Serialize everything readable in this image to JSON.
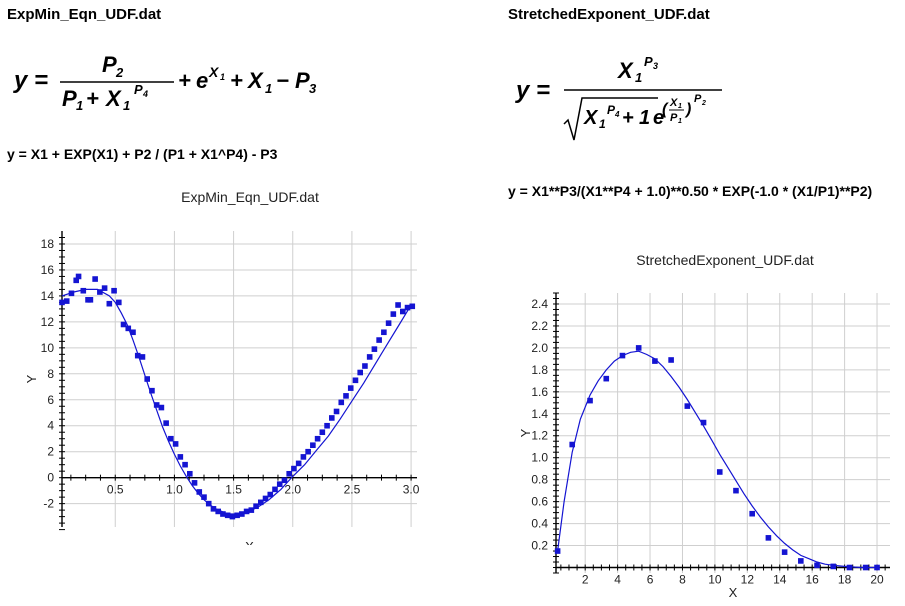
{
  "left": {
    "file_title": "ExpMin_Eqn_UDF.dat",
    "equation_text": "y = X1 + EXP(X1) + P2 / (P1 + X1^P4) - P3"
  },
  "right": {
    "file_title": "StretchedExponent_UDF.dat",
    "equation_text": "y = X1**P3/(X1**P4 + 1.0)**0.50 * EXP(-1.0 * (X1/P1)**P2)"
  },
  "colors": {
    "series": "#1414d2",
    "grid": "#cfcfcf",
    "axis": "#000000"
  },
  "chart_data": [
    {
      "type": "scatter",
      "title": "ExpMin_Eqn_UDF.dat",
      "xlabel": "X",
      "ylabel": "Y",
      "xlim": [
        0.05,
        3.05
      ],
      "ylim": [
        -3.8,
        19
      ],
      "xticks": [
        0.5,
        1.0,
        1.5,
        2.0,
        2.5,
        3.0
      ],
      "xtick_labels": [
        "0.5",
        "1.0",
        "1.5",
        "2.0",
        "2.5",
        "3.0"
      ],
      "yticks": [
        -2,
        0,
        2,
        4,
        6,
        8,
        10,
        12,
        14,
        16,
        18
      ],
      "grid": true,
      "series": [
        {
          "marker": "square",
          "x": [
            0.05,
            0.09,
            0.13,
            0.17,
            0.19,
            0.23,
            0.27,
            0.29,
            0.33,
            0.37,
            0.41,
            0.45,
            0.49,
            0.53,
            0.57,
            0.61,
            0.65,
            0.69,
            0.73,
            0.77,
            0.81,
            0.85,
            0.89,
            0.93,
            0.97,
            1.01,
            1.05,
            1.09,
            1.13,
            1.17,
            1.21,
            1.25,
            1.29,
            1.33,
            1.37,
            1.41,
            1.45,
            1.49,
            1.53,
            1.57,
            1.61,
            1.65,
            1.69,
            1.73,
            1.77,
            1.81,
            1.85,
            1.89,
            1.93,
            1.97,
            2.01,
            2.05,
            2.09,
            2.13,
            2.17,
            2.21,
            2.25,
            2.29,
            2.33,
            2.37,
            2.41,
            2.45,
            2.49,
            2.53,
            2.57,
            2.61,
            2.65,
            2.69,
            2.73,
            2.77,
            2.81,
            2.85,
            2.89,
            2.93,
            2.97,
            3.01
          ],
          "y": [
            13.5,
            13.6,
            14.2,
            15.2,
            15.5,
            14.4,
            13.7,
            13.7,
            15.3,
            14.3,
            14.6,
            13.4,
            14.4,
            13.5,
            11.8,
            11.5,
            11.2,
            9.4,
            9.3,
            7.6,
            6.7,
            5.6,
            5.4,
            4.2,
            3.0,
            2.6,
            1.6,
            1.0,
            0.3,
            -0.4,
            -1.1,
            -1.5,
            -2.0,
            -2.4,
            -2.6,
            -2.8,
            -2.9,
            -3.0,
            -2.9,
            -2.8,
            -2.6,
            -2.5,
            -2.2,
            -1.9,
            -1.6,
            -1.3,
            -0.9,
            -0.5,
            -0.2,
            0.3,
            0.7,
            1.1,
            1.6,
            2.0,
            2.5,
            3.0,
            3.5,
            4.0,
            4.6,
            5.1,
            5.8,
            6.3,
            6.9,
            7.5,
            8.1,
            8.6,
            9.3,
            9.9,
            10.6,
            11.2,
            11.9,
            12.6,
            13.3,
            12.8,
            13.1,
            13.2
          ]
        },
        {
          "type": "line",
          "x": [
            0.05,
            0.15,
            0.25,
            0.35,
            0.45,
            0.5,
            0.55,
            0.6,
            0.65,
            0.7,
            0.75,
            0.8,
            0.85,
            0.9,
            0.95,
            1.0,
            1.05,
            1.1,
            1.15,
            1.2,
            1.25,
            1.3,
            1.35,
            1.4,
            1.45,
            1.5,
            1.55,
            1.6,
            1.65,
            1.7,
            1.75,
            1.8,
            1.85,
            1.9,
            1.95,
            2.0,
            2.1,
            2.2,
            2.3,
            2.4,
            2.5,
            2.6,
            2.7,
            2.8,
            2.9,
            3.0
          ],
          "y": [
            14.0,
            14.3,
            14.5,
            14.5,
            14.0,
            13.5,
            12.7,
            11.8,
            10.6,
            9.3,
            7.9,
            6.5,
            5.2,
            3.9,
            2.8,
            1.8,
            0.9,
            0.1,
            -0.6,
            -1.2,
            -1.7,
            -2.1,
            -2.4,
            -2.6,
            -2.8,
            -2.8,
            -2.8,
            -2.7,
            -2.5,
            -2.3,
            -2.0,
            -1.7,
            -1.3,
            -0.9,
            -0.4,
            0.1,
            1.0,
            2.1,
            3.2,
            4.5,
            5.9,
            7.3,
            8.8,
            10.3,
            11.8,
            13.3
          ]
        }
      ]
    },
    {
      "type": "scatter",
      "title": "StretchedExponent_UDF.dat",
      "xlabel": "X",
      "ylabel": "Y",
      "xlim": [
        0.2,
        20.8
      ],
      "ylim": [
        -0.05,
        2.5
      ],
      "xticks": [
        2,
        4,
        6,
        8,
        10,
        12,
        14,
        16,
        18,
        20
      ],
      "yticks": [
        0.2,
        0.4,
        0.6,
        0.8,
        1.0,
        1.2,
        1.4,
        1.6,
        1.8,
        2.0,
        2.2,
        2.4
      ],
      "ytick_labels": [
        "0.2",
        "0.4",
        "0.6",
        "0.8",
        "1.0",
        "1.2",
        "1.4",
        "1.6",
        "1.8",
        "2.0",
        "2.2",
        "2.4"
      ],
      "grid": true,
      "series": [
        {
          "marker": "square",
          "x": [
            0.3,
            1.2,
            2.3,
            3.3,
            4.3,
            5.3,
            6.3,
            7.3,
            8.3,
            9.3,
            10.3,
            11.3,
            12.3,
            13.3,
            14.3,
            15.3,
            16.3,
            17.3,
            18.3,
            19.3,
            20.0
          ],
          "y": [
            0.15,
            1.12,
            1.52,
            1.72,
            1.93,
            2.0,
            1.88,
            1.89,
            1.47,
            1.32,
            0.87,
            0.7,
            0.49,
            0.27,
            0.14,
            0.06,
            0.02,
            0.01,
            0.0,
            0.0,
            0.0
          ]
        },
        {
          "type": "line",
          "x": [
            0.3,
            0.7,
            1.2,
            1.7,
            2.3,
            2.8,
            3.3,
            3.8,
            4.3,
            4.8,
            5.3,
            5.8,
            6.3,
            6.8,
            7.3,
            7.8,
            8.3,
            8.8,
            9.3,
            9.8,
            10.3,
            10.8,
            11.3,
            11.8,
            12.3,
            12.8,
            13.3,
            13.8,
            14.3,
            14.8,
            15.3,
            15.8,
            16.3,
            16.8,
            17.3,
            18.0,
            19.0,
            20.0
          ],
          "y": [
            0.15,
            0.6,
            1.05,
            1.35,
            1.57,
            1.7,
            1.8,
            1.88,
            1.93,
            1.96,
            1.97,
            1.94,
            1.9,
            1.83,
            1.74,
            1.64,
            1.53,
            1.41,
            1.29,
            1.16,
            1.03,
            0.91,
            0.79,
            0.67,
            0.56,
            0.46,
            0.37,
            0.29,
            0.22,
            0.16,
            0.11,
            0.08,
            0.05,
            0.03,
            0.02,
            0.01,
            0.0,
            0.0
          ]
        }
      ]
    }
  ]
}
